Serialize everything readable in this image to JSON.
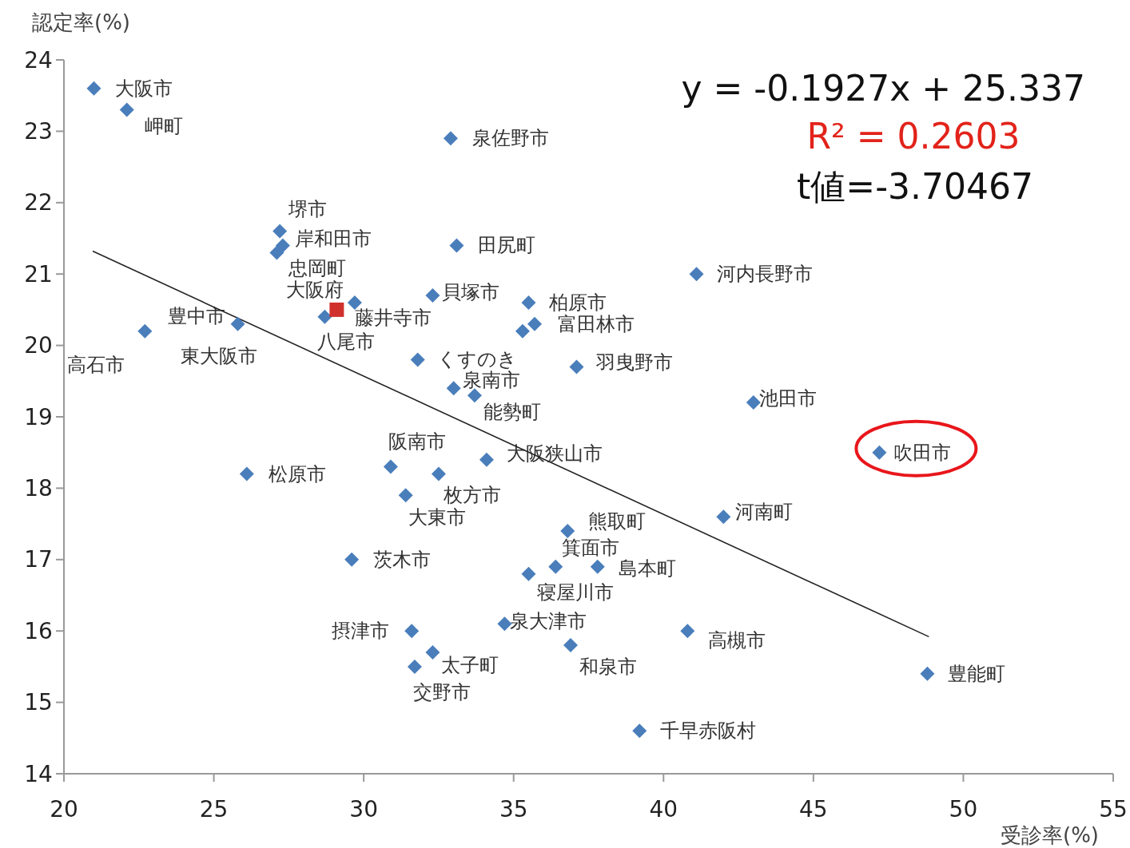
{
  "chart_data": {
    "type": "scatter",
    "xlabel": "受診率(%)",
    "ylabel": "認定率(%)",
    "xlim": [
      20,
      55
    ],
    "ylim": [
      14,
      24
    ],
    "xticks": [
      20,
      25,
      30,
      35,
      40,
      45,
      50,
      55
    ],
    "yticks": [
      14,
      15,
      16,
      17,
      18,
      19,
      20,
      21,
      22,
      23,
      24
    ],
    "series": [
      {
        "type": "scatter",
        "color": "#4a7ebb",
        "marker": "diamond",
        "x": [
          21.0,
          22.1,
          32.9,
          27.2,
          27.3,
          27.1,
          33.1,
          41.1,
          32.3,
          35.5,
          35.7,
          35.3,
          29.7,
          28.7,
          25.8,
          22.7,
          31.8,
          33.0,
          33.7,
          37.1,
          43.0,
          47.2,
          30.9,
          34.1,
          32.5,
          26.1,
          31.4,
          42.0,
          36.8,
          36.4,
          37.8,
          35.5,
          29.6,
          34.7,
          31.6,
          40.8,
          32.3,
          31.7,
          36.9,
          39.2,
          48.8
        ],
        "values": [
          23.6,
          23.3,
          22.9,
          21.6,
          21.4,
          21.3,
          21.4,
          21.0,
          20.7,
          20.6,
          20.3,
          20.2,
          20.6,
          20.4,
          20.3,
          20.2,
          19.8,
          19.4,
          19.3,
          19.7,
          19.2,
          18.5,
          18.3,
          18.4,
          18.2,
          18.2,
          17.9,
          17.6,
          17.4,
          16.9,
          16.9,
          16.8,
          17.0,
          16.1,
          16.0,
          16.0,
          15.7,
          15.5,
          15.8,
          14.6,
          15.4
        ]
      },
      {
        "type": "scatter",
        "color": "#d0312d",
        "marker": "square",
        "x": [
          29.1
        ],
        "values": [
          20.5
        ]
      },
      {
        "type": "line",
        "color": "#222222",
        "marker": "none",
        "x": [
          20.96,
          48.85
        ],
        "values": [
          21.32,
          15.92
        ]
      }
    ],
    "annotations": [
      "y = -0.1927x + 25.337",
      "R² = 0.2603",
      "t値=-3.70467",
      {
        "text": "大阪市",
        "x": 21.0,
        "y": 23.6
      },
      {
        "text": "岬町",
        "x": 22.1,
        "y": 23.3
      },
      {
        "text": "泉佐野市",
        "x": 32.9,
        "y": 22.9
      },
      {
        "text": "堺市",
        "x": 27.2,
        "y": 21.6
      },
      {
        "text": "岸和田市",
        "x": 27.3,
        "y": 21.4
      },
      {
        "text": "忠岡町",
        "x": 27.1,
        "y": 21.3
      },
      {
        "text": "田尻町",
        "x": 33.1,
        "y": 21.4
      },
      {
        "text": "河内長野市",
        "x": 41.1,
        "y": 21.0
      },
      {
        "text": "貝塚市",
        "x": 32.3,
        "y": 20.7
      },
      {
        "text": "柏原市",
        "x": 35.5,
        "y": 20.6
      },
      {
        "text": "富田林市",
        "x": 35.7,
        "y": 20.3
      },
      {
        "text": "大阪府",
        "x": 29.1,
        "y": 20.5
      },
      {
        "text": "藤井寺市",
        "x": 29.7,
        "y": 20.6
      },
      {
        "text": "八尾市",
        "x": 28.7,
        "y": 20.4
      },
      {
        "text": "豊中市",
        "x": 25.8,
        "y": 20.3
      },
      {
        "text": "東大阪市",
        "x": 25.8,
        "y": 20.3
      },
      {
        "text": "高石市",
        "x": 22.7,
        "y": 20.2
      },
      {
        "text": "くすのき",
        "x": 31.8,
        "y": 19.8
      },
      {
        "text": "泉南市",
        "x": 33.0,
        "y": 19.4
      },
      {
        "text": "能勢町",
        "x": 33.7,
        "y": 19.3
      },
      {
        "text": "羽曳野市",
        "x": 37.1,
        "y": 19.7
      },
      {
        "text": "池田市",
        "x": 43.0,
        "y": 19.2
      },
      {
        "text": "吹田市",
        "x": 47.2,
        "y": 18.5
      },
      {
        "text": "阪南市",
        "x": 30.9,
        "y": 18.3
      },
      {
        "text": "大阪狭山市",
        "x": 34.1,
        "y": 18.4
      },
      {
        "text": "枚方市",
        "x": 32.5,
        "y": 18.2
      },
      {
        "text": "松原市",
        "x": 26.1,
        "y": 18.2
      },
      {
        "text": "大東市",
        "x": 31.4,
        "y": 17.9
      },
      {
        "text": "河南町",
        "x": 42.0,
        "y": 17.6
      },
      {
        "text": "熊取町",
        "x": 36.8,
        "y": 17.4
      },
      {
        "text": "箕面市",
        "x": 36.4,
        "y": 16.9
      },
      {
        "text": "島本町",
        "x": 37.8,
        "y": 16.9
      },
      {
        "text": "寝屋川市",
        "x": 35.5,
        "y": 16.8
      },
      {
        "text": "茨木市",
        "x": 29.6,
        "y": 17.0
      },
      {
        "text": "泉大津市",
        "x": 34.7,
        "y": 16.1
      },
      {
        "text": "摂津市",
        "x": 31.6,
        "y": 16.0
      },
      {
        "text": "高槻市",
        "x": 40.8,
        "y": 16.0
      },
      {
        "text": "太子町",
        "x": 32.3,
        "y": 15.7
      },
      {
        "text": "交野市",
        "x": 31.7,
        "y": 15.5
      },
      {
        "text": "和泉市",
        "x": 36.9,
        "y": 15.8
      },
      {
        "text": "千早赤阪村",
        "x": 39.2,
        "y": 14.6
      },
      {
        "text": "豊能町",
        "x": 48.8,
        "y": 15.4
      }
    ]
  }
}
